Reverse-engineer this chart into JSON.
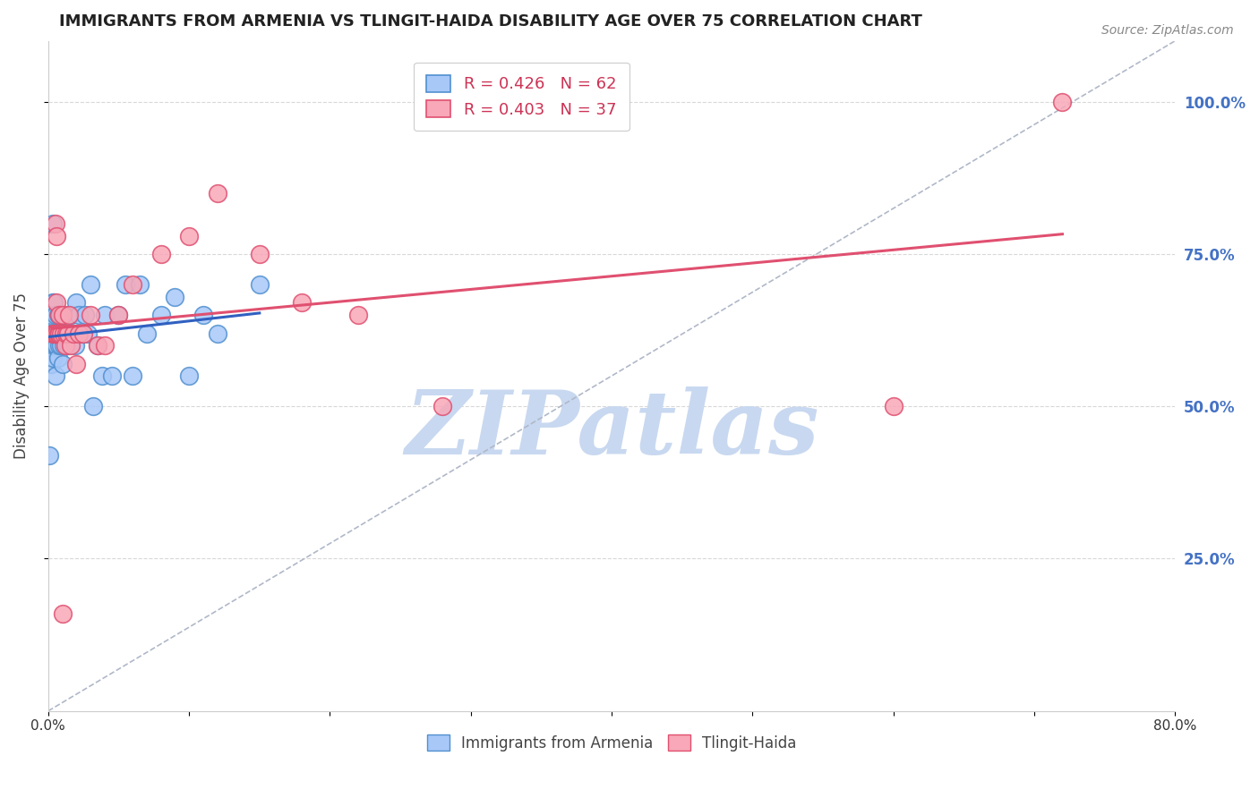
{
  "title": "IMMIGRANTS FROM ARMENIA VS TLINGIT-HAIDA DISABILITY AGE OVER 75 CORRELATION CHART",
  "source": "Source: ZipAtlas.com",
  "ylabel": "Disability Age Over 75",
  "right_yticks": [
    "100.0%",
    "75.0%",
    "50.0%",
    "25.0%"
  ],
  "right_ytick_vals": [
    1.0,
    0.75,
    0.5,
    0.25
  ],
  "xlim": [
    0.0,
    0.8
  ],
  "ylim": [
    0.0,
    1.1
  ],
  "legend_r1": "R = 0.426   N = 62",
  "legend_r2": "R = 0.403   N = 37",
  "series1_color": "#a8c8f8",
  "series2_color": "#f8a8b8",
  "series1_edge": "#5090d0",
  "series2_edge": "#e05070",
  "trendline1_color": "#3060c0",
  "trendline2_color": "#e05070",
  "dashed_line_color": "#b0b8c8",
  "watermark_color": "#c8d8f0",
  "watermark_text": "ZIPatlas",
  "legend_box_color1": "#a8c8f8",
  "legend_box_color2": "#f8a8b8",
  "legend_box_edge1": "#5090d0",
  "legend_box_edge2": "#e05070",
  "grid_color": "#d8d8d8",
  "armenia_x": [
    0.001,
    0.001,
    0.002,
    0.002,
    0.002,
    0.003,
    0.003,
    0.003,
    0.003,
    0.004,
    0.004,
    0.004,
    0.005,
    0.005,
    0.005,
    0.005,
    0.006,
    0.006,
    0.006,
    0.007,
    0.007,
    0.007,
    0.008,
    0.008,
    0.008,
    0.009,
    0.009,
    0.01,
    0.01,
    0.01,
    0.011,
    0.011,
    0.012,
    0.013,
    0.014,
    0.015,
    0.016,
    0.017,
    0.018,
    0.019,
    0.02,
    0.022,
    0.024,
    0.026,
    0.028,
    0.03,
    0.032,
    0.035,
    0.038,
    0.04,
    0.045,
    0.05,
    0.055,
    0.06,
    0.065,
    0.07,
    0.08,
    0.09,
    0.1,
    0.11,
    0.12,
    0.15
  ],
  "armenia_y": [
    0.62,
    0.42,
    0.65,
    0.6,
    0.57,
    0.67,
    0.62,
    0.58,
    0.8,
    0.67,
    0.62,
    0.6,
    0.65,
    0.6,
    0.62,
    0.55,
    0.62,
    0.62,
    0.6,
    0.65,
    0.62,
    0.58,
    0.65,
    0.6,
    0.62,
    0.65,
    0.6,
    0.62,
    0.62,
    0.57,
    0.65,
    0.6,
    0.62,
    0.62,
    0.6,
    0.62,
    0.65,
    0.62,
    0.62,
    0.6,
    0.67,
    0.65,
    0.62,
    0.65,
    0.62,
    0.7,
    0.5,
    0.6,
    0.55,
    0.65,
    0.55,
    0.65,
    0.7,
    0.55,
    0.7,
    0.62,
    0.65,
    0.68,
    0.55,
    0.65,
    0.62,
    0.7
  ],
  "tlingit_x": [
    0.003,
    0.004,
    0.005,
    0.005,
    0.006,
    0.006,
    0.006,
    0.007,
    0.008,
    0.008,
    0.009,
    0.01,
    0.01,
    0.011,
    0.012,
    0.013,
    0.014,
    0.015,
    0.016,
    0.018,
    0.02,
    0.022,
    0.025,
    0.03,
    0.035,
    0.04,
    0.05,
    0.06,
    0.08,
    0.1,
    0.12,
    0.15,
    0.18,
    0.22,
    0.28,
    0.6,
    0.72
  ],
  "tlingit_y": [
    0.62,
    0.62,
    0.62,
    0.8,
    0.62,
    0.67,
    0.78,
    0.62,
    0.62,
    0.65,
    0.62,
    0.65,
    0.16,
    0.62,
    0.6,
    0.62,
    0.62,
    0.65,
    0.6,
    0.62,
    0.57,
    0.62,
    0.62,
    0.65,
    0.6,
    0.6,
    0.65,
    0.7,
    0.75,
    0.78,
    0.85,
    0.75,
    0.67,
    0.65,
    0.5,
    0.5,
    1.0
  ],
  "figsize": [
    14.06,
    8.92
  ],
  "dpi": 100
}
